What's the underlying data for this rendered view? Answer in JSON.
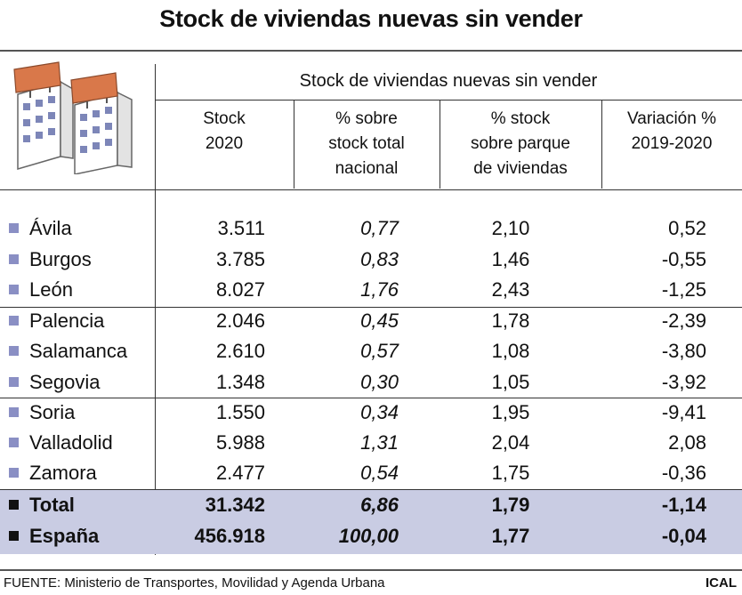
{
  "title": "Stock de viviendas nuevas sin vender",
  "header_group": "Stock de viviendas nuevas sin vender",
  "columns": [
    {
      "line1": "Stock",
      "line2": "2020",
      "line3": ""
    },
    {
      "line1": "% sobre",
      "line2": "stock total",
      "line3": "nacional"
    },
    {
      "line1": "% stock",
      "line2": "sobre parque",
      "line3": "de viviendas"
    },
    {
      "line1": "Variación %",
      "line2": "2019-2020",
      "line3": ""
    }
  ],
  "rows": [
    {
      "name": "Ávila",
      "stock": "3.511",
      "pct_total": "0,77",
      "pct_parque": "2,10",
      "variacion": "0,52"
    },
    {
      "name": "Burgos",
      "stock": "3.785",
      "pct_total": "0,83",
      "pct_parque": "1,46",
      "variacion": "-0,55"
    },
    {
      "name": "León",
      "stock": "8.027",
      "pct_total": "1,76",
      "pct_parque": "2,43",
      "variacion": "-1,25"
    },
    {
      "name": "Palencia",
      "stock": "2.046",
      "pct_total": "0,45",
      "pct_parque": "1,78",
      "variacion": "-2,39"
    },
    {
      "name": "Salamanca",
      "stock": "2.610",
      "pct_total": "0,57",
      "pct_parque": "1,08",
      "variacion": "-3,80"
    },
    {
      "name": "Segovia",
      "stock": "1.348",
      "pct_total": "0,30",
      "pct_parque": "1,05",
      "variacion": "-3,92"
    },
    {
      "name": "Soria",
      "stock": "1.550",
      "pct_total": "0,34",
      "pct_parque": "1,95",
      "variacion": "-9,41"
    },
    {
      "name": "Valladolid",
      "stock": "5.988",
      "pct_total": "1,31",
      "pct_parque": "2,04",
      "variacion": "2,08"
    },
    {
      "name": "Zamora",
      "stock": "2.477",
      "pct_total": "0,54",
      "pct_parque": "1,75",
      "variacion": "-0,36"
    },
    {
      "name": "Total",
      "stock": "31.342",
      "pct_total": "6,86",
      "pct_parque": "1,79",
      "variacion": "-1,14"
    },
    {
      "name": "España",
      "stock": "456.918",
      "pct_total": "100,00",
      "pct_parque": "1,77",
      "variacion": "-0,04"
    }
  ],
  "source": "FUENTE: Ministerio de Transportes, Movilidad y Agenda Urbana",
  "brand": "ICAL",
  "icon": "buildings-for-sale-icon",
  "colors": {
    "total_band": "#c9cce3",
    "row_marker": "#8a8fc4",
    "sign": "#d9784a"
  },
  "chart_data": {
    "type": "table",
    "title": "Stock de viviendas nuevas sin vender",
    "columns": [
      "Stock 2020",
      "% sobre stock total nacional",
      "% stock sobre parque de viviendas",
      "Variación % 2019-2020"
    ],
    "row_labels": [
      "Ávila",
      "Burgos",
      "León",
      "Palencia",
      "Salamanca",
      "Segovia",
      "Soria",
      "Valladolid",
      "Zamora",
      "Total",
      "España"
    ],
    "values": [
      [
        3511,
        0.77,
        2.1,
        0.52
      ],
      [
        3785,
        0.83,
        1.46,
        -0.55
      ],
      [
        8027,
        1.76,
        2.43,
        -1.25
      ],
      [
        2046,
        0.45,
        1.78,
        -2.39
      ],
      [
        2610,
        0.57,
        1.08,
        -3.8
      ],
      [
        1348,
        0.3,
        1.05,
        -3.92
      ],
      [
        1550,
        0.34,
        1.95,
        -9.41
      ],
      [
        5988,
        1.31,
        2.04,
        2.08
      ],
      [
        2477,
        0.54,
        1.75,
        -0.36
      ],
      [
        31342,
        6.86,
        1.79,
        -1.14
      ],
      [
        456918,
        100.0,
        1.77,
        -0.04
      ]
    ]
  }
}
